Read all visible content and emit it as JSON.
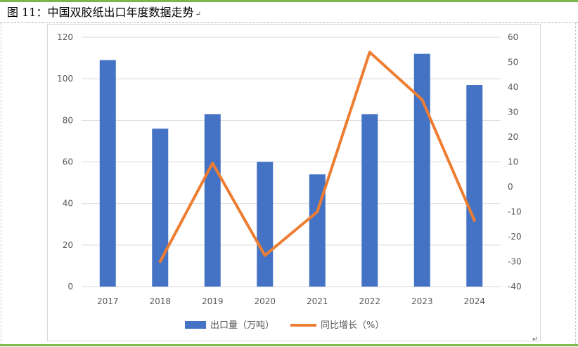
{
  "caption": {
    "text": "图 11：中国双胶纸出口年度数据走势",
    "para_mark": "↵"
  },
  "end_mark": "↵",
  "colors": {
    "bar": "#4472c4",
    "line": "#ed7d31",
    "rule": "#7ab648",
    "grid": "#d9d9d9",
    "tick": "#595959"
  },
  "chart_data": {
    "type": "bar",
    "combo_line": true,
    "title": "",
    "categories": [
      "2017",
      "2018",
      "2019",
      "2020",
      "2021",
      "2022",
      "2023",
      "2024"
    ],
    "series": [
      {
        "name": "出口量（万吨）",
        "type": "bar",
        "axis": "left",
        "values": [
          109,
          76,
          83,
          60,
          54,
          83,
          112,
          97
        ]
      },
      {
        "name": "同比增长（%）",
        "type": "line",
        "axis": "right",
        "values": [
          null,
          -30,
          9.5,
          -27.5,
          -10,
          54,
          35,
          -13.5
        ]
      }
    ],
    "y_left": {
      "ylim": [
        0,
        120
      ],
      "ticks": [
        "0",
        "20",
        "40",
        "60",
        "80",
        "100",
        "120"
      ]
    },
    "y_right": {
      "ylim": [
        -40,
        60
      ],
      "ticks": [
        "-40",
        "-30",
        "-20",
        "-10",
        "0",
        "10",
        "20",
        "30",
        "40",
        "50",
        "60"
      ]
    },
    "grid": true,
    "legend_position": "bottom"
  }
}
